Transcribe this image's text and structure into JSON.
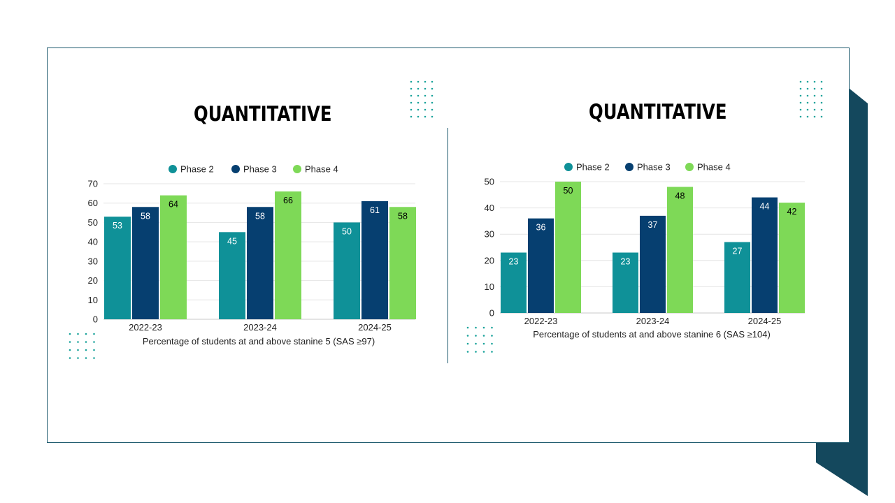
{
  "colors": {
    "phase2": "#0f9198",
    "phase3": "#063f70",
    "phase4": "#7ed957",
    "accent_dark": "#14485d",
    "frame": "#1e5a6e",
    "dots": "#1aa39b"
  },
  "chart_data": [
    {
      "type": "bar",
      "title": "QUANTITATIVE",
      "categories": [
        "2022-23",
        "2023-24",
        "2024-25"
      ],
      "series": [
        {
          "name": "Phase 2",
          "values": [
            53,
            45,
            50
          ]
        },
        {
          "name": "Phase 3",
          "values": [
            58,
            58,
            61
          ]
        },
        {
          "name": "Phase 4",
          "values": [
            64,
            66,
            58
          ]
        }
      ],
      "xlabel": "Percentage of students at and above stanine 5 (SAS ≥97)",
      "ylabel": "",
      "ylim": [
        0,
        70
      ],
      "yticks": [
        0,
        10,
        20,
        30,
        40,
        50,
        60,
        70
      ],
      "grid": true,
      "legend": "top-center"
    },
    {
      "type": "bar",
      "title": "QUANTITATIVE",
      "categories": [
        "2022-23",
        "2023-24",
        "2024-25"
      ],
      "series": [
        {
          "name": "Phase 2",
          "values": [
            23,
            23,
            27
          ]
        },
        {
          "name": "Phase 3",
          "values": [
            36,
            37,
            44
          ]
        },
        {
          "name": "Phase 4",
          "values": [
            50,
            48,
            42
          ]
        }
      ],
      "xlabel": "Percentage of students at and above stanine 6 (SAS ≥104)",
      "ylabel": "",
      "ylim": [
        0,
        50
      ],
      "yticks": [
        0,
        10,
        20,
        30,
        40,
        50
      ],
      "grid": true,
      "legend": "top-center"
    }
  ]
}
